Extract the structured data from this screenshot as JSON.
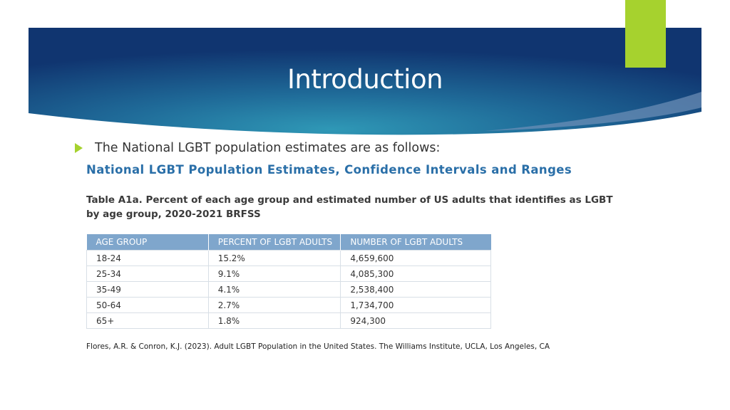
{
  "slide": {
    "title": "Introduction",
    "bullet": "The National LGBT population estimates are as follows:"
  },
  "figure": {
    "heading": "National LGBT Population Estimates, Confidence Intervals and Ranges",
    "caption_line1": "Table A1a. Percent of each age group and estimated number of US adults that identifies as LGBT",
    "caption_line2": "by age group, 2020-2021 BRFSS",
    "table": {
      "headers": [
        "AGE GROUP",
        "PERCENT OF LGBT ADULTS",
        "NUMBER OF LGBT ADULTS"
      ],
      "rows": [
        [
          "18-24",
          "15.2%",
          "4,659,600"
        ],
        [
          "25-34",
          "9.1%",
          "4,085,300"
        ],
        [
          "35-49",
          "4.1%",
          "2,538,400"
        ],
        [
          "50-64",
          "2.7%",
          "1,734,700"
        ],
        [
          "65+",
          "1.8%",
          "924,300"
        ]
      ]
    }
  },
  "source": "Flores, A.R. & Conron, K.J. (2023). Adult LGBT Population in the United States. The Williams Institute, UCLA, Los Angeles, CA",
  "colors": {
    "accent": "#a6d22e",
    "banner_dark": "#123a6e",
    "banner_light": "#2b8fb0",
    "heading_blue": "#2a6fa8",
    "table_header": "#7fa6cc"
  }
}
